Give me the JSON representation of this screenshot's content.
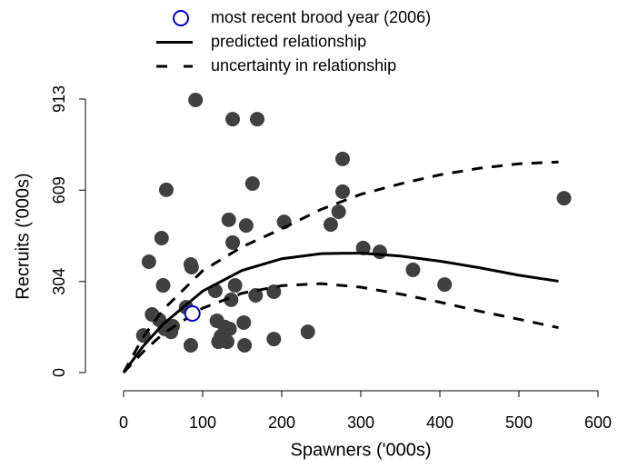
{
  "chart_data": {
    "type": "scatter",
    "x_label": "Spawners ('000s)",
    "y_label": "Recruits ('000s)",
    "xlim": [
      0,
      600
    ],
    "ylim": [
      0,
      913
    ],
    "xticks": [
      0,
      100,
      200,
      300,
      400,
      500,
      600
    ],
    "yticks": [
      0,
      304,
      609,
      913
    ],
    "series": [
      {
        "style": "filled-circle",
        "color": "#404040",
        "x": [
          91,
          138,
          169,
          277,
          163,
          54,
          277,
          133,
          155,
          203,
          272,
          262,
          48,
          138,
          32,
          85,
          86,
          303,
          324,
          366,
          406,
          557,
          50,
          116,
          141,
          167,
          190,
          136,
          79,
          36,
          45,
          118,
          152,
          62,
          52,
          128,
          134,
          25,
          123,
          120,
          131,
          153,
          85,
          190,
          233,
          60
        ],
        "values": [
          910,
          846,
          846,
          713,
          631,
          610,
          604,
          510,
          491,
          503,
          537,
          494,
          449,
          434,
          370,
          361,
          352,
          416,
          403,
          343,
          294,
          582,
          291,
          273,
          291,
          258,
          270,
          243,
          218,
          194,
          176,
          173,
          167,
          155,
          146,
          152,
          146,
          124,
          121,
          103,
          103,
          91,
          91,
          112,
          136,
          136
        ]
      },
      {
        "name": "predicted relationship",
        "style": "solid",
        "color": "#000000",
        "x": [
          0,
          25,
          50,
          100,
          150,
          200,
          250,
          300,
          350,
          400,
          450,
          500,
          550
        ],
        "values": [
          0,
          89,
          162,
          272,
          341,
          380,
          397,
          399,
          389,
          372,
          350,
          325,
          305
        ]
      },
      {
        "name": "uncertainty in relationship",
        "style": "dashed",
        "color": "#000000",
        "x": [
          0,
          25,
          50,
          100,
          150,
          200,
          250,
          300,
          350,
          400,
          450,
          500,
          550
        ],
        "values": [
          0,
          120,
          210,
          340,
          420,
          480,
          545,
          595,
          630,
          660,
          682,
          697,
          703
        ]
      },
      {
        "style": "dashed",
        "color": "#000000",
        "x": [
          0,
          25,
          50,
          100,
          150,
          200,
          250,
          300,
          350,
          400,
          450,
          500,
          550
        ],
        "values": [
          0,
          70,
          130,
          215,
          265,
          290,
          297,
          285,
          262,
          235,
          205,
          178,
          150
        ]
      },
      {
        "name": "most recent brood year (2006)",
        "style": "open-circle",
        "color": "#0000cc",
        "x": [
          87
        ],
        "values": [
          197
        ]
      }
    ]
  }
}
